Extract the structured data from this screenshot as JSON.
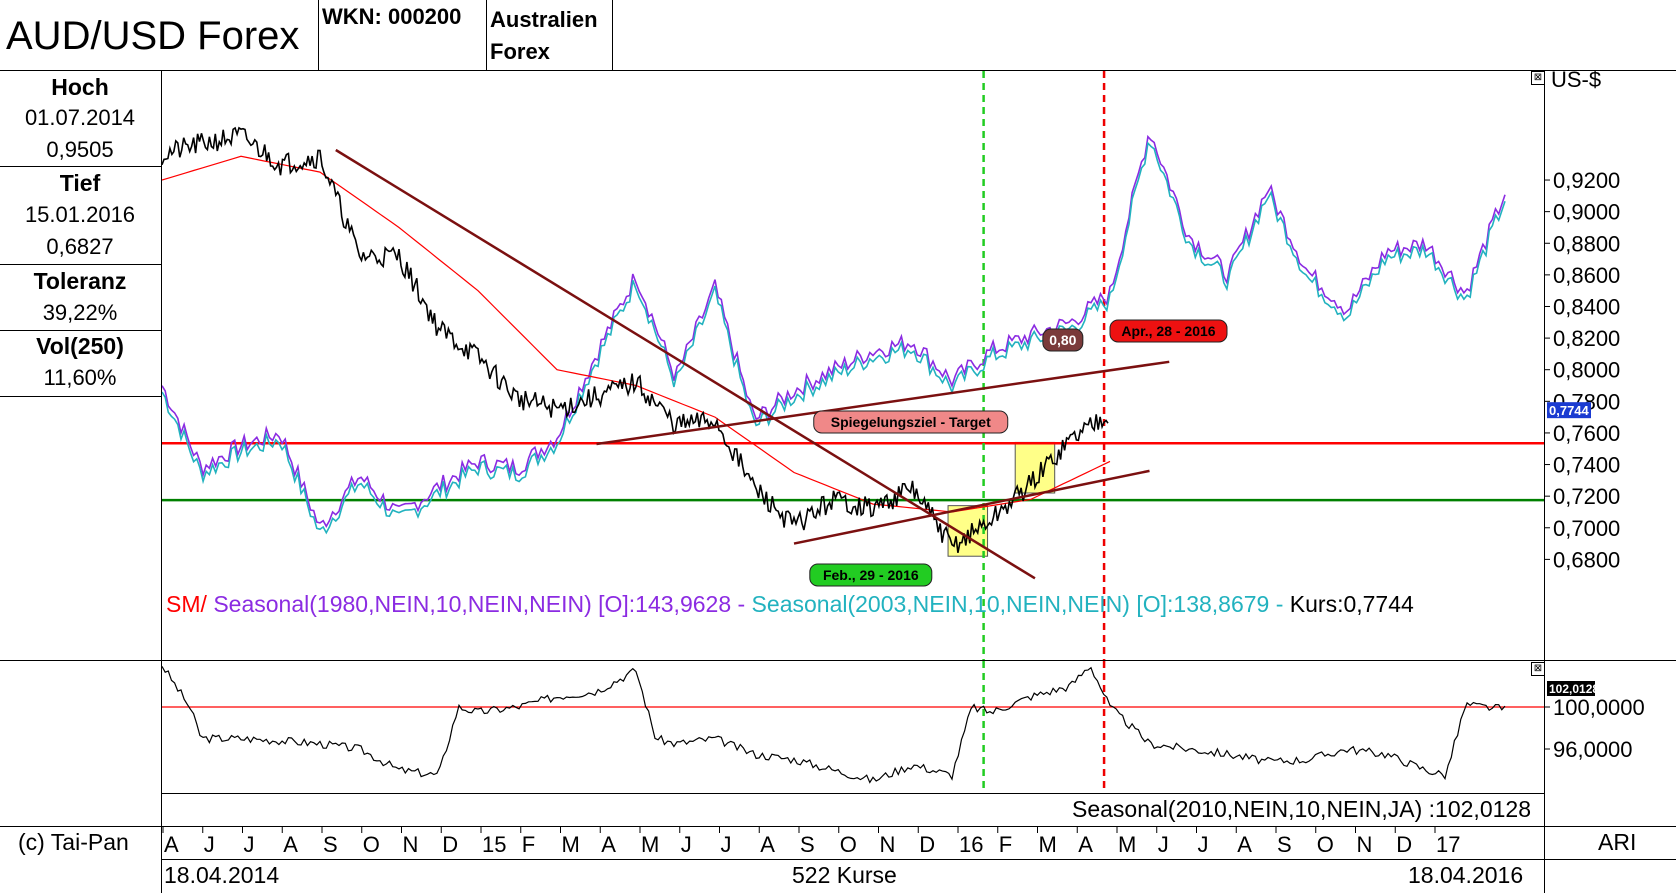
{
  "header": {
    "title": "AUD/USD Forex",
    "wkn": "WKN: 000200",
    "name_line1": "Australien",
    "name_line2": "Forex"
  },
  "stats": {
    "hoch_label": "Hoch",
    "hoch_date": "01.07.2014",
    "hoch_value": "0,9505",
    "tief_label": "Tief",
    "tief_date": "15.01.2016",
    "tief_value": "0,6827",
    "toleranz_label": "Toleranz",
    "toleranz_value": "39,22%",
    "vol_label": "Vol(250)",
    "vol_value": "11,60%"
  },
  "colors": {
    "price": "#000000",
    "sma": "#ff0000",
    "seasonal_1980": "#8b2be2",
    "seasonal_2003": "#22b2bf",
    "resistance": "#ff0000",
    "support": "#008000",
    "trendline": "#7b1010",
    "green_marker": "#22cc22",
    "red_marker": "#ee0000",
    "highlight": "#ffff88"
  },
  "chart_data": [
    {
      "type": "line",
      "title": "",
      "ylabel": "US-$",
      "ylim": [
        0.66,
        0.97
      ],
      "yticks": [
        "0,9200",
        "0,9000",
        "0,8800",
        "0,8600",
        "0,8400",
        "0,8200",
        "0,8000",
        "0,7800",
        "0,7600",
        "0,7400",
        "0,7200",
        "0,7000",
        "0,6800"
      ],
      "ytick_values": [
        0.92,
        0.9,
        0.88,
        0.86,
        0.84,
        0.82,
        0.8,
        0.78,
        0.76,
        0.74,
        0.72,
        0.7,
        0.68
      ],
      "current_price_label": "0,7744",
      "x_month_labels": [
        "A",
        "J",
        "J",
        "A",
        "S",
        "O",
        "N",
        "D",
        "15",
        "F",
        "M",
        "A",
        "M",
        "J",
        "J",
        "A",
        "S",
        "O",
        "N",
        "D",
        "16",
        "F",
        "M",
        "A",
        "M",
        "J",
        "J",
        "A",
        "S",
        "O",
        "N",
        "D",
        "17"
      ],
      "x_start_date": "18.04.2014",
      "x_end_date": "18.04.2016",
      "kurse": "522 Kurse",
      "series": [
        {
          "name": "Kurs",
          "months": [
            0,
            1,
            2,
            3,
            4,
            5,
            6,
            7,
            8,
            9,
            10,
            11,
            12,
            13,
            14,
            15,
            16,
            17,
            18,
            19,
            20,
            21,
            22,
            23,
            24
          ],
          "values": [
            0.936,
            0.943,
            0.948,
            0.93,
            0.935,
            0.872,
            0.872,
            0.826,
            0.808,
            0.782,
            0.775,
            0.783,
            0.792,
            0.765,
            0.768,
            0.725,
            0.701,
            0.718,
            0.712,
            0.725,
            0.688,
            0.705,
            0.728,
            0.756,
            0.774
          ]
        },
        {
          "name": "SMA",
          "months": [
            0,
            2,
            4,
            6,
            8,
            10,
            12,
            14,
            16,
            18,
            20,
            22,
            24
          ],
          "values": [
            0.92,
            0.935,
            0.925,
            0.89,
            0.85,
            0.8,
            0.79,
            0.77,
            0.735,
            0.715,
            0.71,
            0.718,
            0.742
          ]
        },
        {
          "name": "Seasonal(1980,NEIN,10,NEIN,NEIN) [O]:143,9628",
          "months": [
            0,
            1,
            2,
            3,
            4,
            5,
            6,
            7,
            8,
            9,
            10,
            11,
            12,
            13,
            14,
            15,
            16,
            17,
            18,
            19,
            20,
            21,
            22,
            23,
            24,
            25,
            26,
            27,
            28,
            29,
            30,
            31,
            32,
            33,
            34
          ],
          "values": [
            0.79,
            0.738,
            0.752,
            0.76,
            0.7,
            0.733,
            0.708,
            0.726,
            0.742,
            0.738,
            0.758,
            0.81,
            0.86,
            0.795,
            0.852,
            0.768,
            0.787,
            0.8,
            0.812,
            0.818,
            0.793,
            0.812,
            0.822,
            0.83,
            0.848,
            0.952,
            0.885,
            0.86,
            0.915,
            0.862,
            0.838,
            0.875,
            0.88,
            0.848,
            0.912
          ]
        },
        {
          "name": "Seasonal(2003,NEIN,10,NEIN,NEIN) [O]:138,8679",
          "months": [
            0,
            1,
            2,
            3,
            4,
            5,
            6,
            7,
            8,
            9,
            10,
            11,
            12,
            13,
            14,
            15,
            16,
            17,
            18,
            19,
            20,
            21,
            22,
            23,
            24,
            25,
            26,
            27,
            28,
            29,
            30,
            31,
            32,
            33,
            34
          ],
          "values": [
            0.786,
            0.734,
            0.748,
            0.756,
            0.696,
            0.729,
            0.704,
            0.722,
            0.738,
            0.734,
            0.754,
            0.806,
            0.856,
            0.791,
            0.848,
            0.764,
            0.783,
            0.796,
            0.808,
            0.814,
            0.789,
            0.808,
            0.818,
            0.826,
            0.844,
            0.948,
            0.881,
            0.856,
            0.911,
            0.858,
            0.834,
            0.871,
            0.876,
            0.844,
            0.908
          ]
        }
      ],
      "levels": [
        {
          "name": "resistance",
          "value": 0.7535
        },
        {
          "name": "support",
          "value": 0.7175
        }
      ],
      "annotations": [
        {
          "text": "0,80",
          "value": 0.8
        },
        {
          "text": "Apr., 28 - 2016",
          "date": "28.04.2016"
        },
        {
          "text": "Spiegelungsziel - Target",
          "value": 0.757
        },
        {
          "text": "Feb., 29 - 2016",
          "date": "29.02.2016"
        }
      ],
      "legend": [
        {
          "text": "- SM/",
          "color": "#ff0000"
        },
        {
          "text": "Seasonal(1980,NEIN,10,NEIN,NEIN) [O]:143,9628 -",
          "color": "#8b2be2"
        },
        {
          "text": "Seasonal(2003,NEIN,10,NEIN,NEIN) [O]:138,8679 -",
          "color": "#22b2bf"
        },
        {
          "text": "Kurs:0,7744",
          "color": "#000000"
        }
      ]
    },
    {
      "type": "line",
      "title": "Seasonal(2010,NEIN,10,NEIN,JA) :102,0128",
      "ylim": [
        92,
        104
      ],
      "yticks": [
        "100,0000",
        "96,0000"
      ],
      "ytick_values": [
        100,
        96
      ],
      "reference_line": 100,
      "current_label": "102,0128",
      "series": [
        {
          "name": "Seasonal(2010,NEIN,10,NEIN,JA)",
          "months": [
            0,
            0.7,
            1,
            2,
            3,
            4,
            5,
            6,
            7,
            7.5,
            8,
            9,
            10,
            11,
            12,
            12.5,
            13,
            14,
            15,
            16,
            17,
            18,
            19,
            20,
            20.5,
            21,
            22,
            23,
            23.5,
            24,
            25,
            26,
            27,
            28,
            29,
            30,
            31,
            32,
            32.5,
            33,
            34
          ],
          "values": [
            104,
            100,
            97,
            97,
            96.8,
            96.5,
            96,
            94,
            93.5,
            100,
            99.5,
            100,
            101,
            101.5,
            103.5,
            97,
            96.5,
            97,
            95.5,
            95,
            94,
            93,
            94.5,
            93.5,
            100,
            99.5,
            101,
            102,
            104,
            100,
            96.5,
            96,
            95.5,
            94.8,
            95,
            96,
            95.5,
            94,
            93.5,
            100.2,
            99.8
          ]
        }
      ]
    }
  ],
  "footer": {
    "copyright": "(c) Tai-Pan",
    "ari": "ARI",
    "start_date": "18.04.2014",
    "kurse": "522 Kurse",
    "end_date": "18.04.2016"
  },
  "close_glyph": "⊠"
}
